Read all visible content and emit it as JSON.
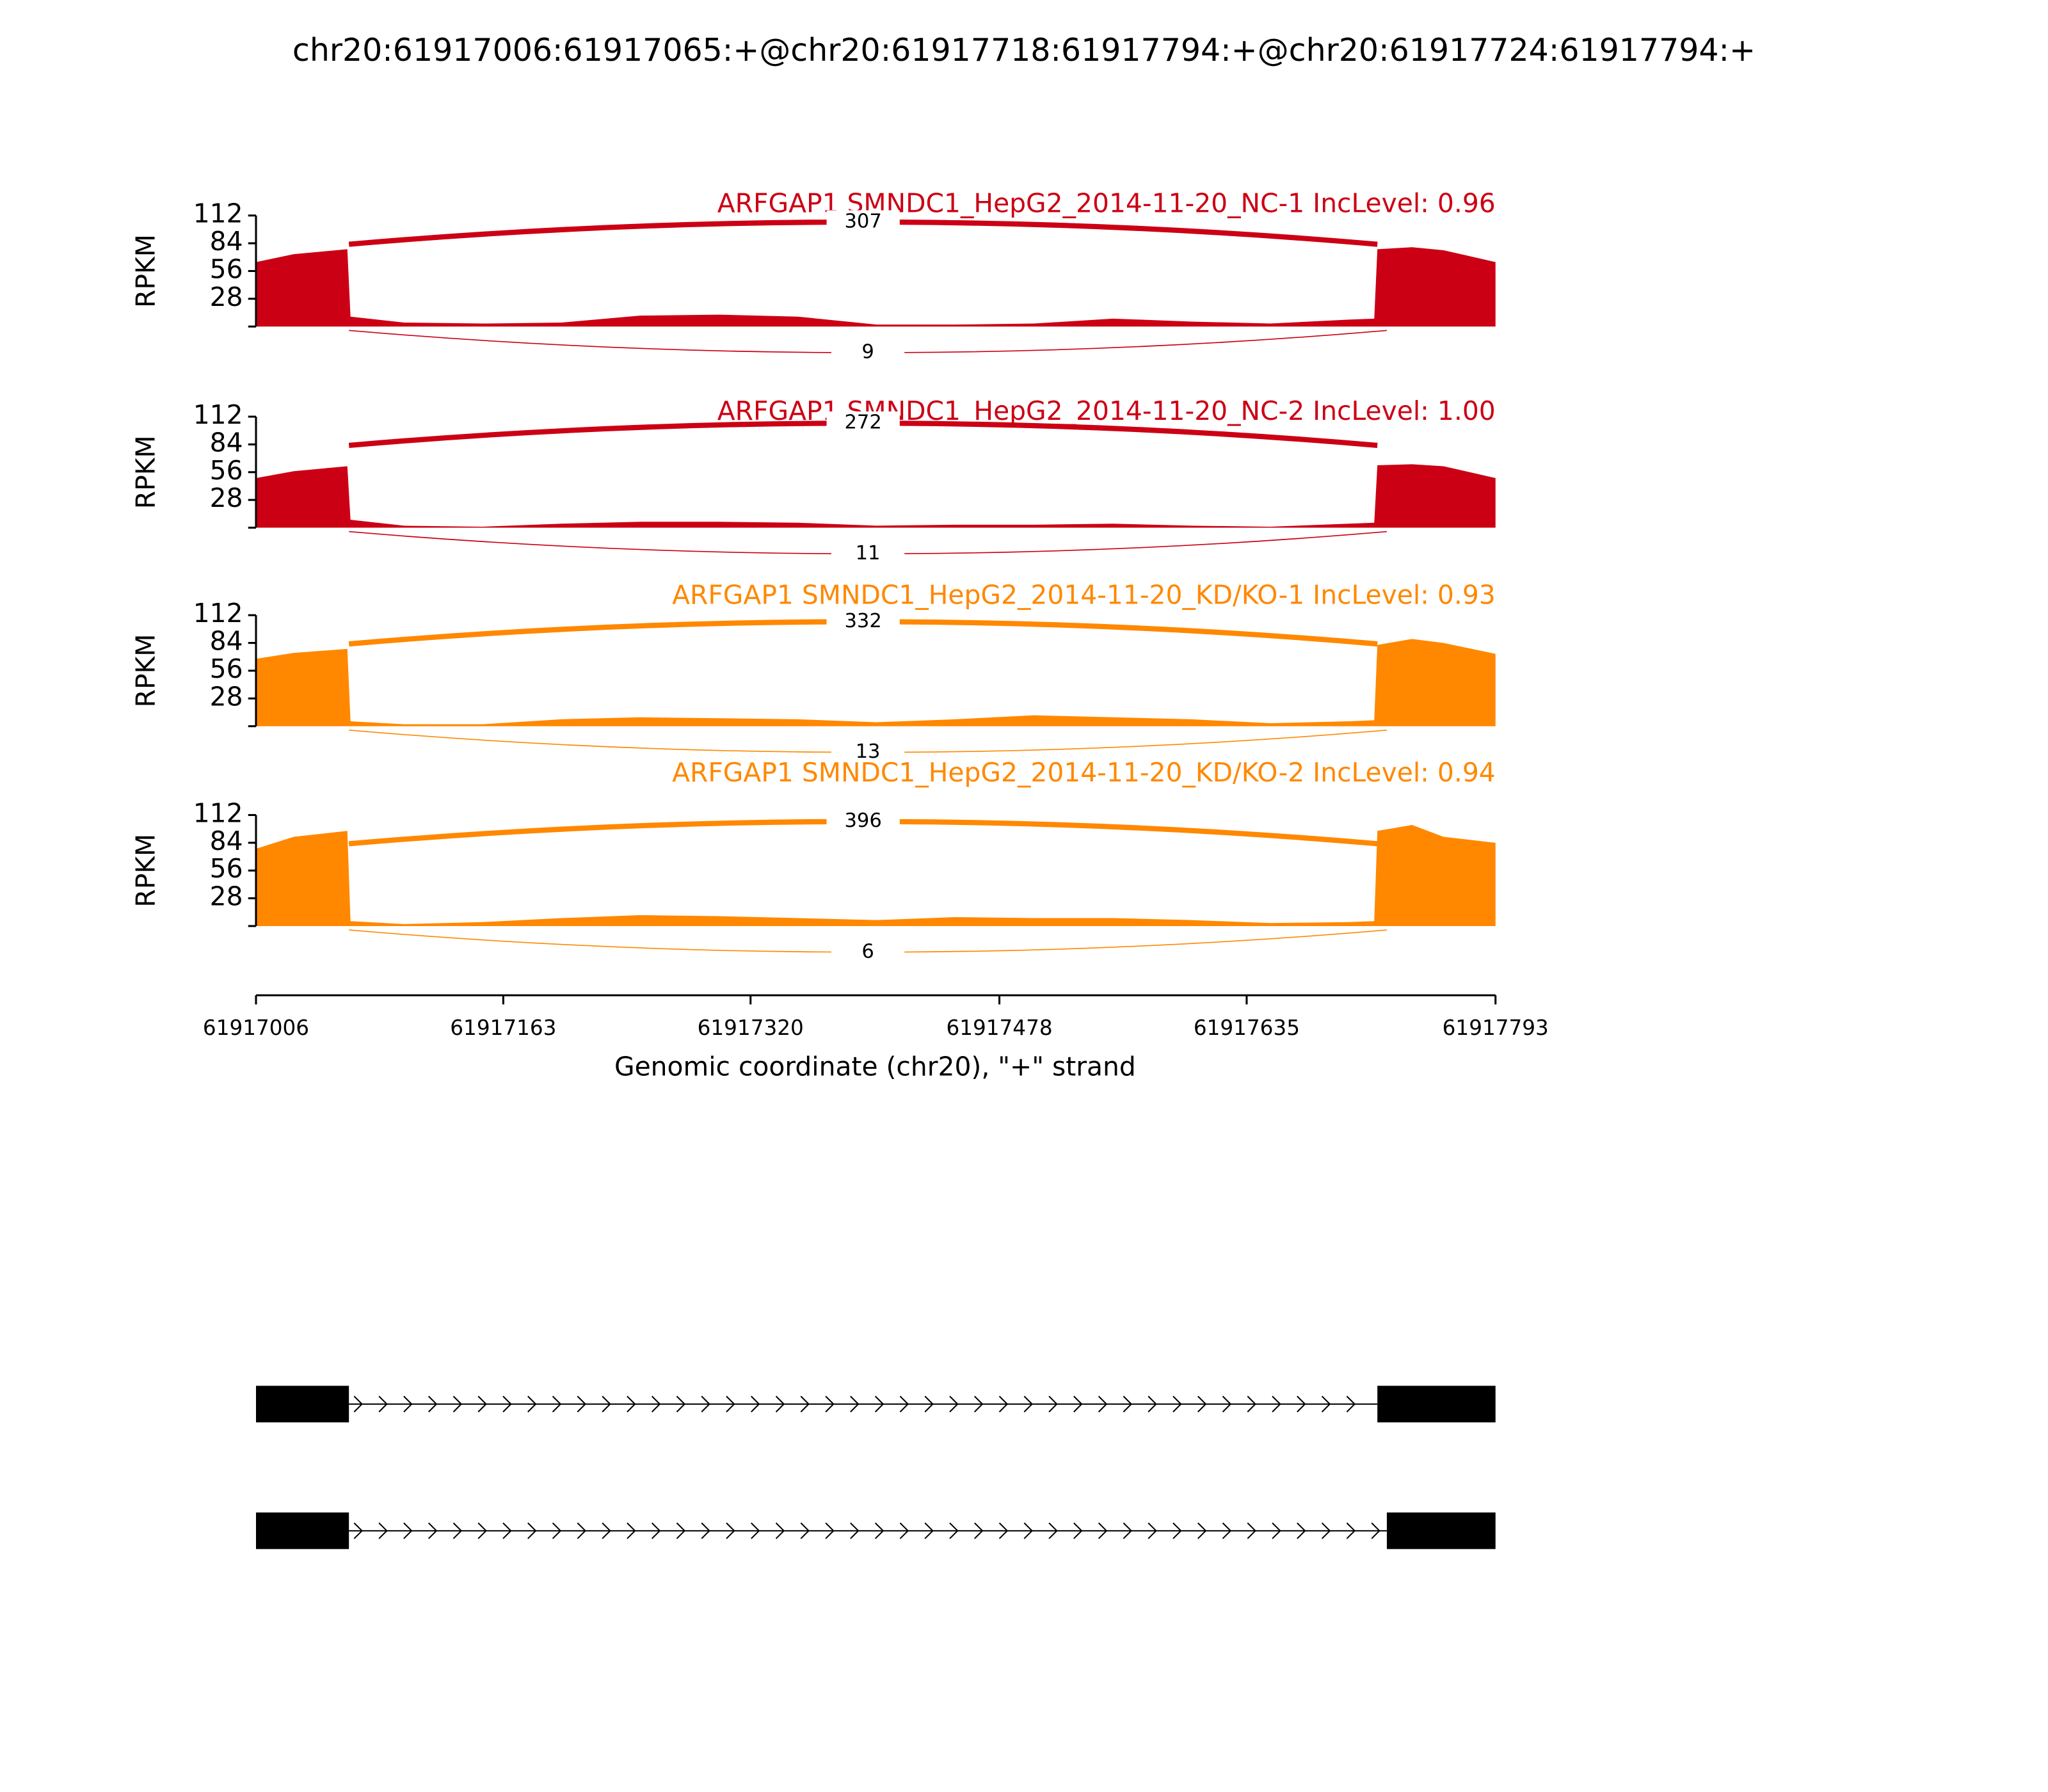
{
  "chart_data": {
    "type": "sashimi",
    "title": "chr20:61917006:61917065:+@chr20:61917718:61917794:+@chr20:61917724:61917794:+",
    "xlabel": "Genomic coordinate (chr20), \"+\" strand",
    "xlim": [
      61917006,
      61917793
    ],
    "xticks": [
      61917006,
      61917163,
      61917320,
      61917478,
      61917635,
      61917793
    ],
    "x": [
      61917006,
      61917030,
      61917064,
      61917066,
      61917100,
      61917150,
      61917200,
      61917250,
      61917300,
      61917350,
      61917400,
      61917450,
      61917500,
      61917550,
      61917600,
      61917650,
      61917700,
      61917716,
      61917718,
      61917740,
      61917760,
      61917793
    ],
    "panels": [
      {
        "title": "ARFGAP1 SMNDC1_HepG2_2014-11-20_NC-1 IncLevel: 0.96",
        "color": "#cc0014",
        "ylabel": "RPKM",
        "ylim": [
          0,
          112
        ],
        "yticks": [
          28,
          56,
          84,
          112
        ],
        "values": [
          65,
          73,
          78,
          10,
          4,
          3,
          4,
          11,
          12,
          10,
          2,
          2,
          3,
          8,
          5,
          3,
          7,
          8,
          78,
          80,
          77,
          65
        ],
        "junctions": [
          {
            "start": 61917065,
            "end": 61917718,
            "count": 307
          },
          {
            "start": 61917065,
            "end": 61917724,
            "count": 9
          }
        ]
      },
      {
        "title": "ARFGAP1 SMNDC1_HepG2_2014-11-20_NC-2 IncLevel: 1.00",
        "color": "#cc0014",
        "ylabel": "RPKM",
        "ylim": [
          0,
          112
        ],
        "yticks": [
          28,
          56,
          84,
          112
        ],
        "values": [
          50,
          57,
          62,
          8,
          2,
          1,
          4,
          6,
          6,
          5,
          2,
          3,
          3,
          4,
          2,
          1,
          4,
          5,
          63,
          64,
          62,
          50
        ],
        "junctions": [
          {
            "start": 61917065,
            "end": 61917718,
            "count": 272
          },
          {
            "start": 61917065,
            "end": 61917724,
            "count": 11
          }
        ]
      },
      {
        "title": "ARFGAP1 SMNDC1_HepG2_2014-11-20_KD/KO-1 IncLevel: 0.93",
        "color": "#ff8800",
        "ylabel": "RPKM",
        "ylim": [
          0,
          112
        ],
        "yticks": [
          28,
          56,
          84,
          112
        ],
        "values": [
          68,
          74,
          78,
          5,
          2,
          2,
          7,
          9,
          8,
          7,
          4,
          7,
          11,
          9,
          7,
          3,
          5,
          6,
          82,
          88,
          84,
          73
        ],
        "junctions": [
          {
            "start": 61917065,
            "end": 61917718,
            "count": 332
          },
          {
            "start": 61917065,
            "end": 61917724,
            "count": 13
          }
        ]
      },
      {
        "title": "ARFGAP1 SMNDC1_HepG2_2014-11-20_KD/KO-2 IncLevel: 0.94",
        "color": "#ff8800",
        "ylabel": "RPKM",
        "ylim": [
          0,
          112
        ],
        "yticks": [
          28,
          56,
          84,
          112
        ],
        "values": [
          78,
          90,
          96,
          5,
          2,
          4,
          8,
          11,
          10,
          8,
          6,
          9,
          8,
          8,
          6,
          3,
          4,
          5,
          96,
          102,
          90,
          84
        ],
        "junctions": [
          {
            "start": 61917065,
            "end": 61917718,
            "count": 396
          },
          {
            "start": 61917065,
            "end": 61917724,
            "count": 6
          }
        ]
      }
    ],
    "transcripts": [
      {
        "exons": [
          [
            61917006,
            61917065
          ],
          [
            61917718,
            61917793
          ]
        ]
      },
      {
        "exons": [
          [
            61917006,
            61917065
          ],
          [
            61917724,
            61917793
          ]
        ]
      }
    ]
  }
}
